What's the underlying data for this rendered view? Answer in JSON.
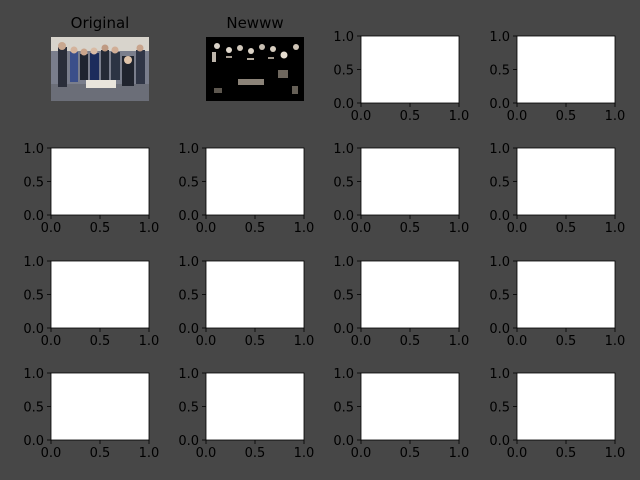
{
  "figure": {
    "background": "#474747",
    "axes_face": "#ffffff",
    "rows": 4,
    "cols": 4
  },
  "chart_data": [
    {
      "type": "image",
      "title": "Original",
      "image": "group-photo-color",
      "axis_visible": false
    },
    {
      "type": "image",
      "title": "Newww",
      "image": "group-photo-dark-threshold",
      "axis_visible": false
    },
    {
      "type": "empty",
      "xlim": [
        0,
        1
      ],
      "ylim": [
        0,
        1
      ],
      "xticks": [
        "0.0",
        "0.5",
        "1.0"
      ],
      "yticks": [
        "0.0",
        "0.5",
        "1.0"
      ]
    },
    {
      "type": "empty",
      "xlim": [
        0,
        1
      ],
      "ylim": [
        0,
        1
      ],
      "xticks": [
        "0.0",
        "0.5",
        "1.0"
      ],
      "yticks": [
        "0.0",
        "0.5",
        "1.0"
      ]
    },
    {
      "type": "empty",
      "xlim": [
        0,
        1
      ],
      "ylim": [
        0,
        1
      ],
      "xticks": [
        "0.0",
        "0.5",
        "1.0"
      ],
      "yticks": [
        "0.0",
        "0.5",
        "1.0"
      ]
    },
    {
      "type": "empty",
      "xlim": [
        0,
        1
      ],
      "ylim": [
        0,
        1
      ],
      "xticks": [
        "0.0",
        "0.5",
        "1.0"
      ],
      "yticks": [
        "0.0",
        "0.5",
        "1.0"
      ]
    },
    {
      "type": "empty",
      "xlim": [
        0,
        1
      ],
      "ylim": [
        0,
        1
      ],
      "xticks": [
        "0.0",
        "0.5",
        "1.0"
      ],
      "yticks": [
        "0.0",
        "0.5",
        "1.0"
      ]
    },
    {
      "type": "empty",
      "xlim": [
        0,
        1
      ],
      "ylim": [
        0,
        1
      ],
      "xticks": [
        "0.0",
        "0.5",
        "1.0"
      ],
      "yticks": [
        "0.0",
        "0.5",
        "1.0"
      ]
    },
    {
      "type": "empty",
      "xlim": [
        0,
        1
      ],
      "ylim": [
        0,
        1
      ],
      "xticks": [
        "0.0",
        "0.5",
        "1.0"
      ],
      "yticks": [
        "0.0",
        "0.5",
        "1.0"
      ]
    },
    {
      "type": "empty",
      "xlim": [
        0,
        1
      ],
      "ylim": [
        0,
        1
      ],
      "xticks": [
        "0.0",
        "0.5",
        "1.0"
      ],
      "yticks": [
        "0.0",
        "0.5",
        "1.0"
      ]
    },
    {
      "type": "empty",
      "xlim": [
        0,
        1
      ],
      "ylim": [
        0,
        1
      ],
      "xticks": [
        "0.0",
        "0.5",
        "1.0"
      ],
      "yticks": [
        "0.0",
        "0.5",
        "1.0"
      ]
    },
    {
      "type": "empty",
      "xlim": [
        0,
        1
      ],
      "ylim": [
        0,
        1
      ],
      "xticks": [
        "0.0",
        "0.5",
        "1.0"
      ],
      "yticks": [
        "0.0",
        "0.5",
        "1.0"
      ]
    },
    {
      "type": "empty",
      "xlim": [
        0,
        1
      ],
      "ylim": [
        0,
        1
      ],
      "xticks": [
        "0.0",
        "0.5",
        "1.0"
      ],
      "yticks": [
        "0.0",
        "0.5",
        "1.0"
      ]
    },
    {
      "type": "empty",
      "xlim": [
        0,
        1
      ],
      "ylim": [
        0,
        1
      ],
      "xticks": [
        "0.0",
        "0.5",
        "1.0"
      ],
      "yticks": [
        "0.0",
        "0.5",
        "1.0"
      ]
    },
    {
      "type": "empty",
      "xlim": [
        0,
        1
      ],
      "ylim": [
        0,
        1
      ],
      "xticks": [
        "0.0",
        "0.5",
        "1.0"
      ],
      "yticks": [
        "0.0",
        "0.5",
        "1.0"
      ]
    },
    {
      "type": "empty",
      "xlim": [
        0,
        1
      ],
      "ylim": [
        0,
        1
      ],
      "xticks": [
        "0.0",
        "0.5",
        "1.0"
      ],
      "yticks": [
        "0.0",
        "0.5",
        "1.0"
      ]
    }
  ]
}
